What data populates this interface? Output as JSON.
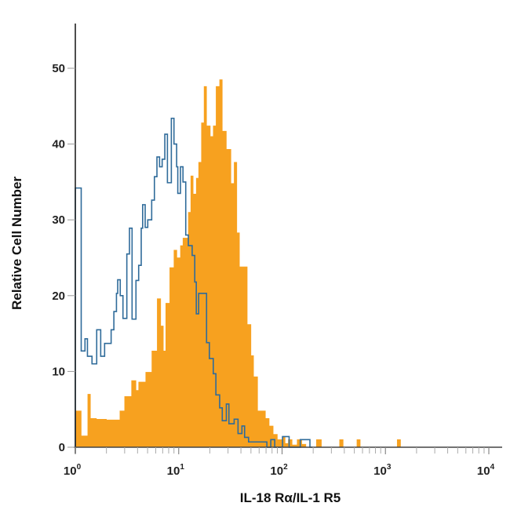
{
  "chart_data": {
    "type": "histogram",
    "title": "",
    "xlabel": "IL-18 Rα/IL-1 R5",
    "ylabel": "Relative Cell Number",
    "xscale": "log",
    "xlim": [
      1,
      10000
    ],
    "ylim": [
      0,
      50
    ],
    "grid": false,
    "x_ticks": [
      {
        "value": 1,
        "base": "10",
        "exp": "0"
      },
      {
        "value": 10,
        "base": "10",
        "exp": "1"
      },
      {
        "value": 100,
        "base": "10",
        "exp": "2"
      },
      {
        "value": 1000,
        "base": "10",
        "exp": "3"
      },
      {
        "value": 10000,
        "base": "10",
        "exp": "4"
      }
    ],
    "y_ticks": [
      "0",
      "10",
      "20",
      "30",
      "40",
      "50"
    ],
    "series": [
      {
        "style": "filled",
        "color": "#F7A11F",
        "x": [
          1.0,
          1.14,
          1.32,
          1.4,
          1.6,
          2.0,
          2.7,
          3.0,
          3.5,
          3.86,
          4.1,
          4.8,
          5.5,
          6.2,
          6.7,
          7.1,
          7.5,
          8.2,
          9.0,
          9.6,
          10.4,
          11.0,
          11.7,
          12.4,
          13.1,
          13.8,
          14.8,
          15.6,
          16.6,
          17.6,
          18.6,
          20.2,
          21.6,
          23.0,
          24.9,
          26.4,
          28.9,
          32.0,
          34.4,
          36.5,
          38.7,
          42.0,
          46.0,
          50.0,
          53.0,
          58.0,
          63.0,
          69.0,
          75.0,
          82.0,
          90.0,
          101,
          107,
          115,
          125,
          140,
          155,
          170,
          215,
          240,
          360,
          390,
          530,
          570,
          1300,
          1400
        ],
        "y": [
          4.8,
          1.5,
          7.0,
          3.8,
          3.7,
          3.6,
          4.8,
          6.7,
          8.8,
          7.5,
          8.6,
          9.9,
          12.7,
          19.6,
          16.0,
          12.7,
          19.0,
          23.7,
          26.0,
          25.0,
          26.6,
          27.6,
          27.6,
          31.0,
          35.8,
          33.4,
          35.5,
          37.6,
          42.8,
          47.6,
          42.4,
          41.0,
          42.4,
          47.6,
          48.5,
          41.7,
          39.3,
          34.8,
          37.6,
          28.3,
          23.8,
          23.8,
          16.2,
          12.1,
          9.3,
          4.8,
          4.8,
          3.8,
          2.8,
          1.7,
          1.0,
          1.4,
          0.5,
          1.0,
          0.3,
          1.0,
          0.4,
          0,
          1.0,
          0,
          1.0,
          0,
          1.0,
          0,
          1.0,
          0
        ]
      },
      {
        "style": "outline",
        "color": "#2F6B9A",
        "x": [
          1.0,
          1.14,
          1.24,
          1.31,
          1.45,
          1.61,
          1.76,
          1.92,
          2.22,
          2.36,
          2.5,
          2.57,
          2.72,
          2.89,
          3.15,
          3.34,
          3.54,
          3.86,
          4.1,
          4.34,
          4.48,
          4.74,
          5.02,
          5.48,
          5.82,
          6.16,
          6.53,
          6.92,
          7.34,
          7.78,
          8.49,
          9.0,
          9.55,
          9.8,
          10.4,
          11.0,
          11.7,
          12.4,
          13.5,
          14.3,
          14.8,
          15.6,
          17.6,
          18.6,
          19.8,
          21.6,
          22.9,
          24.9,
          26.4,
          28.9,
          30.6,
          34.4,
          37.5,
          40.9,
          43.4,
          47.4,
          71.3,
          77.8,
          84.9,
          101,
          117,
          150,
          186
        ],
        "y": [
          34.2,
          12.7,
          14.3,
          12.0,
          11.0,
          15.5,
          12.0,
          13.7,
          15.5,
          17.9,
          20.3,
          22.1,
          20.0,
          17.0,
          25.5,
          28.9,
          16.9,
          22.0,
          24.0,
          28.9,
          32.0,
          29.0,
          30.0,
          32.6,
          35.7,
          38.3,
          37.0,
          38.0,
          41.3,
          34.9,
          43.4,
          40.0,
          37.0,
          33.5,
          37.0,
          35.0,
          28.0,
          26.6,
          25.3,
          21.8,
          17.6,
          20.3,
          20.3,
          13.8,
          11.7,
          9.7,
          6.9,
          5.2,
          3.5,
          5.7,
          3.1,
          3.7,
          1.8,
          2.8,
          1.3,
          0.7,
          0,
          1.0,
          0,
          1.4,
          0,
          1.0,
          0
        ]
      }
    ]
  }
}
